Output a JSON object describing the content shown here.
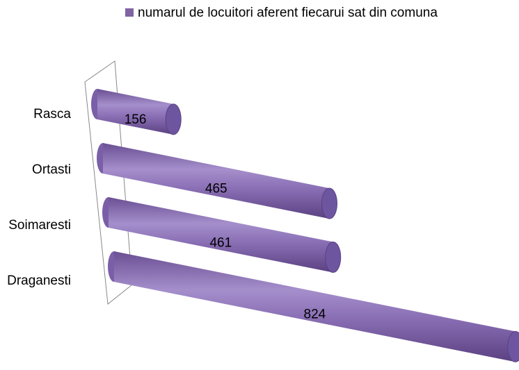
{
  "chart_data": {
    "type": "bar",
    "orientation": "horizontal",
    "style": "3d-cylinder",
    "categories": [
      "Rasca",
      "Ortasti",
      "Soimaresti",
      "Draganesti"
    ],
    "series": [
      {
        "name": "numarul de locuitori aferent fiecarui sat din comuna",
        "color": "#8064a2",
        "values": [
          156,
          465,
          461,
          824
        ]
      }
    ],
    "legend": "top"
  }
}
